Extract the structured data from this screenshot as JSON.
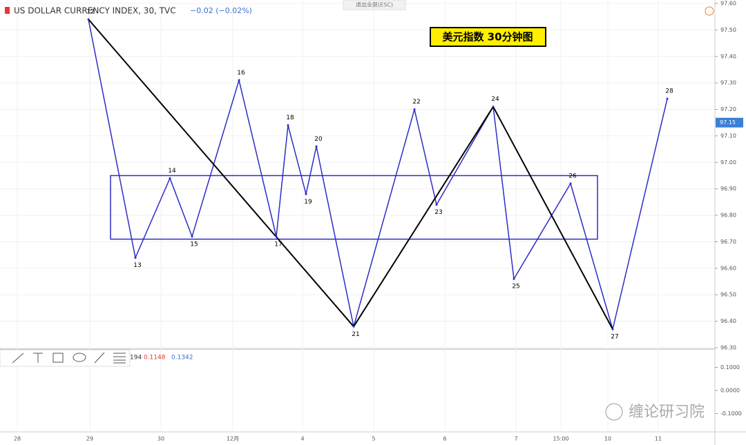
{
  "chart_data": {
    "type": "zigzag",
    "title": "US DOLLAR CURRENCY INDEX, 30, TVC",
    "change": "−0.02 (−0.02%)",
    "exit_fullscreen": "退出全屏(ESC)",
    "annotation": "美元指数  30分钟图",
    "watermark": "缠论研习院",
    "last_price": 97.15,
    "last_price_label": "97.15",
    "pivot_labels": [
      "12",
      "13",
      "14",
      "15",
      "16",
      "17",
      "18",
      "19",
      "20",
      "21",
      "22",
      "23",
      "24",
      "25",
      "26",
      "27",
      "28"
    ],
    "pivots": [
      97.54,
      96.64,
      96.94,
      96.72,
      97.31,
      96.72,
      97.14,
      96.88,
      97.06,
      96.38,
      97.2,
      96.84,
      97.21,
      96.56,
      96.92,
      96.37,
      97.24
    ],
    "zones": [
      {
        "low": 96.71,
        "high": 96.95
      }
    ],
    "ylim": [
      96.3,
      97.6
    ],
    "yticks": [
      {
        "value": 97.6,
        "label": "97.60"
      },
      {
        "value": 97.5,
        "label": "97.50"
      },
      {
        "value": 97.4,
        "label": "97.40"
      },
      {
        "value": 97.3,
        "label": "97.30"
      },
      {
        "value": 97.2,
        "label": "97.20"
      },
      {
        "value": 97.1,
        "label": "97.10"
      },
      {
        "value": 97.0,
        "label": "97.00"
      },
      {
        "value": 96.9,
        "label": "96.90"
      },
      {
        "value": 96.8,
        "label": "96.80"
      },
      {
        "value": 96.7,
        "label": "96.70"
      },
      {
        "value": 96.6,
        "label": "96.60"
      },
      {
        "value": 96.5,
        "label": "96.50"
      },
      {
        "value": 96.4,
        "label": "96.40"
      },
      {
        "value": 96.3,
        "label": "96.30"
      }
    ],
    "grid": true,
    "xtick_labels": [
      "28",
      "29",
      "30",
      "12月",
      "4",
      "5",
      "6",
      "7",
      "15:00",
      "10",
      "11"
    ],
    "macd_labels": [
      "194",
      "0.1148",
      "0.1342"
    ],
    "macd_ylim": [
      -0.176,
      0.176
    ],
    "macd_yticks": [
      {
        "value": 0.1,
        "label": "0.1000"
      },
      {
        "value": 0,
        "label": "0.0000"
      },
      {
        "value": -0.1,
        "label": "-0.1000"
      }
    ]
  }
}
